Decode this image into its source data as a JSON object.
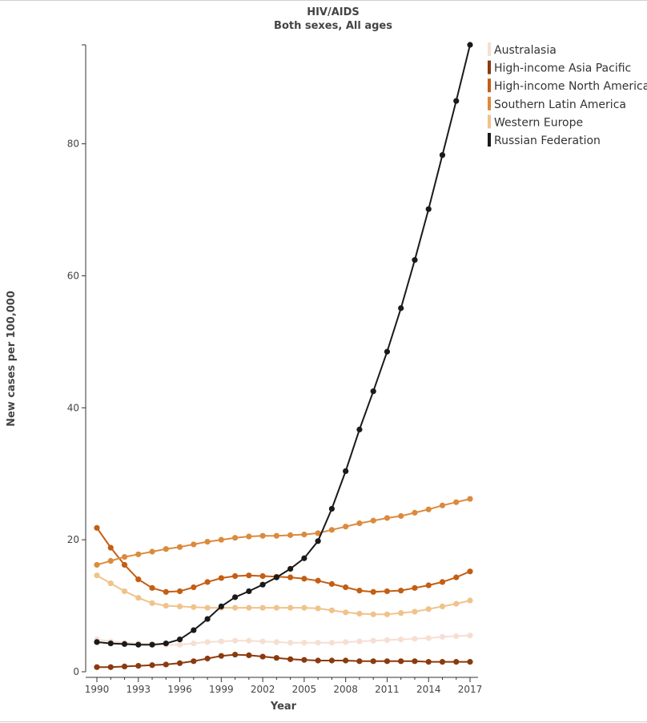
{
  "chart_data": {
    "type": "line",
    "title": "HIV/AIDS",
    "subtitle": "Both sexes, All ages",
    "xlabel": "Year",
    "ylabel": "New cases per 100,000",
    "xlim": [
      1990,
      2017
    ],
    "ylim": [
      0,
      95
    ],
    "x_ticks": [
      1990,
      1993,
      1996,
      1999,
      2002,
      2005,
      2008,
      2011,
      2014,
      2017
    ],
    "y_ticks": [
      0,
      20,
      40,
      60,
      80
    ],
    "grid": false,
    "legend_position": "top-right",
    "x": [
      1990,
      1991,
      1992,
      1993,
      1994,
      1995,
      1996,
      1997,
      1998,
      1999,
      2000,
      2001,
      2002,
      2003,
      2004,
      2005,
      2006,
      2007,
      2008,
      2009,
      2010,
      2011,
      2012,
      2013,
      2014,
      2015,
      2016,
      2017
    ],
    "series": [
      {
        "name": "Australasia",
        "color": "#f6dfd2",
        "values": [
          4.9,
          4.6,
          4.4,
          4.3,
          4.2,
          4.1,
          4.1,
          4.3,
          4.5,
          4.6,
          4.7,
          4.7,
          4.6,
          4.5,
          4.4,
          4.4,
          4.4,
          4.4,
          4.5,
          4.6,
          4.7,
          4.8,
          4.9,
          5.0,
          5.1,
          5.3,
          5.4,
          5.5
        ]
      },
      {
        "name": "High-income Asia Pacific",
        "color": "#8b3a0e",
        "values": [
          0.7,
          0.7,
          0.8,
          0.9,
          1.0,
          1.1,
          1.3,
          1.6,
          2.0,
          2.4,
          2.6,
          2.5,
          2.3,
          2.1,
          1.9,
          1.8,
          1.7,
          1.7,
          1.7,
          1.6,
          1.6,
          1.6,
          1.6,
          1.6,
          1.5,
          1.5,
          1.5,
          1.5
        ]
      },
      {
        "name": "High-income North America",
        "color": "#c45e14",
        "values": [
          21.8,
          18.8,
          16.2,
          14.0,
          12.7,
          12.1,
          12.2,
          12.8,
          13.6,
          14.2,
          14.5,
          14.6,
          14.5,
          14.4,
          14.3,
          14.1,
          13.8,
          13.3,
          12.8,
          12.3,
          12.1,
          12.2,
          12.3,
          12.7,
          13.1,
          13.6,
          14.3,
          15.2
        ]
      },
      {
        "name": "Southern Latin America",
        "color": "#db8a3e",
        "values": [
          16.2,
          16.8,
          17.4,
          17.8,
          18.2,
          18.6,
          18.9,
          19.3,
          19.7,
          20.0,
          20.3,
          20.5,
          20.6,
          20.6,
          20.7,
          20.8,
          21.0,
          21.5,
          22.0,
          22.5,
          22.9,
          23.3,
          23.6,
          24.1,
          24.6,
          25.2,
          25.7,
          26.2
        ]
      },
      {
        "name": "Western Europe",
        "color": "#f0c38b",
        "values": [
          14.6,
          13.4,
          12.2,
          11.2,
          10.4,
          10.0,
          9.9,
          9.8,
          9.7,
          9.7,
          9.7,
          9.7,
          9.7,
          9.7,
          9.7,
          9.7,
          9.6,
          9.3,
          9.0,
          8.8,
          8.7,
          8.7,
          8.9,
          9.1,
          9.5,
          9.9,
          10.3,
          10.8
        ]
      },
      {
        "name": "Russian Federation",
        "color": "#1a1a1a",
        "values": [
          4.5,
          4.3,
          4.2,
          4.1,
          4.1,
          4.3,
          4.9,
          6.3,
          8.0,
          9.9,
          11.3,
          12.2,
          13.2,
          14.3,
          15.6,
          17.2,
          19.8,
          24.7,
          30.4,
          36.7,
          42.5,
          48.5,
          55.1,
          62.4,
          70.1,
          78.3,
          86.5,
          95.0
        ]
      }
    ]
  }
}
